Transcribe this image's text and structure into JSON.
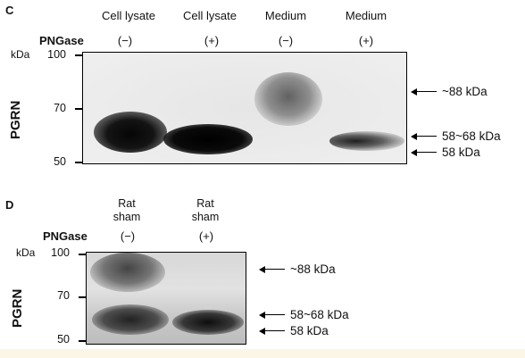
{
  "panel_c": {
    "letter": "C",
    "lanes": [
      "Cell lysate",
      "Cell lysate",
      "Medium",
      "Medium"
    ],
    "pngase_label": "PNGase",
    "signs": [
      "(−)",
      "(+)",
      "(−)",
      "(+)"
    ],
    "kda_label": "kDa",
    "ticks": [
      "100",
      "70",
      "50"
    ],
    "ylabel": "PGRN",
    "annotations": [
      "~88 kDa",
      "58~68 kDa",
      "58 kDa"
    ]
  },
  "panel_d": {
    "letter": "D",
    "lanes": [
      {
        "line1": "Rat",
        "line2": "sham"
      },
      {
        "line1": "Rat",
        "line2": "sham"
      }
    ],
    "pngase_label": "PNGase",
    "signs": [
      "(−)",
      "(+)"
    ],
    "kda_label": "kDa",
    "ticks": [
      "100",
      "70",
      "50"
    ],
    "ylabel": "PGRN",
    "annotations": [
      "~88 kDa",
      "58~68 kDa",
      "58 kDa"
    ]
  },
  "colors": {
    "blot_background": "#eeeeee",
    "band_dark": "#111111",
    "band_mid": "#555555"
  }
}
